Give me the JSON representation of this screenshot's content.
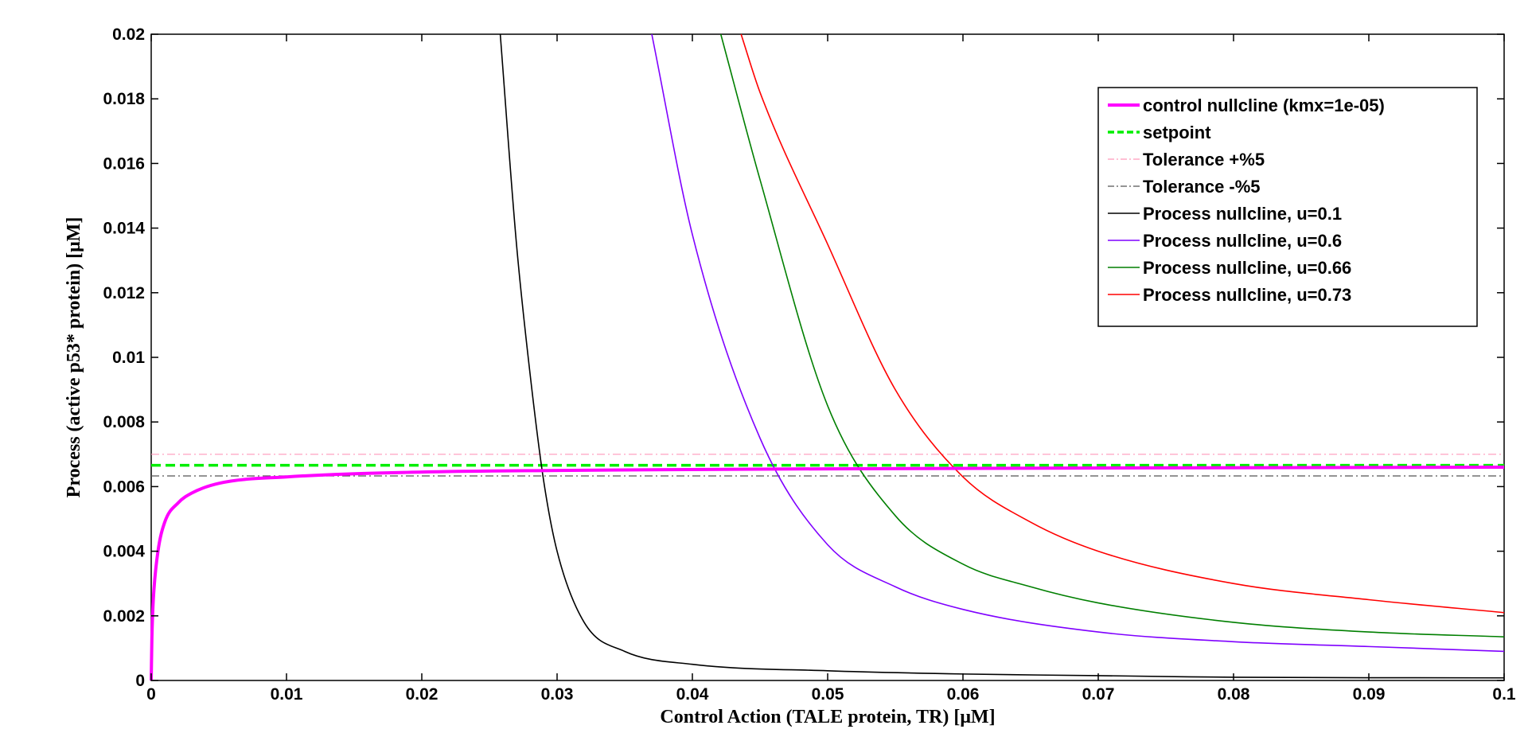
{
  "chart_data": {
    "type": "line",
    "title": "",
    "xlabel": "Control Action (TALE protein, TR) [μM]",
    "ylabel": "Process (active p53* protein) [μM]",
    "xlim": [
      0,
      0.1
    ],
    "ylim": [
      0,
      0.02
    ],
    "x_ticks": [
      "0",
      "0.01",
      "0.02",
      "0.03",
      "0.04",
      "0.05",
      "0.06",
      "0.07",
      "0.08",
      "0.09",
      "0.1"
    ],
    "y_ticks": [
      "0",
      "0.002",
      "0.004",
      "0.006",
      "0.008",
      "0.01",
      "0.012",
      "0.014",
      "0.016",
      "0.018",
      "0.02"
    ],
    "grid": false,
    "legend_position": "top-right",
    "series": [
      {
        "name": "control nullcline (kmx=1e-05)",
        "color": "#ff00ff",
        "style": "solid",
        "x": [
          0,
          5e-05,
          0.0001,
          0.0002,
          0.0005,
          0.001,
          0.002,
          0.003,
          0.005,
          0.01,
          0.02,
          0.03,
          0.05,
          0.1
        ],
        "y": [
          0,
          0.0013,
          0.002,
          0.0028,
          0.004,
          0.0049,
          0.0055,
          0.0058,
          0.0061,
          0.0063,
          0.00645,
          0.0065,
          0.00655,
          0.0066
        ]
      },
      {
        "name": "setpoint",
        "color": "#00ee00",
        "style": "dashed",
        "x": [
          0,
          0.1
        ],
        "y": [
          0.00666,
          0.00666
        ]
      },
      {
        "name": "Tolerance  +%5",
        "color": "#ff99bb",
        "style": "dashdot",
        "x": [
          0,
          0.1
        ],
        "y": [
          0.007,
          0.007
        ]
      },
      {
        "name": "Tolerance   -%5",
        "color": "#555555",
        "style": "dashdot",
        "x": [
          0,
          0.1
        ],
        "y": [
          0.00633,
          0.00633
        ]
      },
      {
        "name": "Process nullcline, u=0.1",
        "color": "#000000",
        "style": "solid",
        "x": [
          0.0258,
          0.027,
          0.028,
          0.029,
          0.03,
          0.032,
          0.035,
          0.04,
          0.05,
          0.06,
          0.07,
          0.08,
          0.1
        ],
        "y": [
          0.02,
          0.0135,
          0.0095,
          0.0062,
          0.004,
          0.0018,
          0.0009,
          0.0005,
          0.0003,
          0.0002,
          0.00015,
          0.0001,
          8e-05
        ]
      },
      {
        "name": "Process nullcline, u=0.6",
        "color": "#7f00ff",
        "style": "solid",
        "x": [
          0.037,
          0.04,
          0.045,
          0.05,
          0.055,
          0.06,
          0.07,
          0.08,
          0.09,
          0.1
        ],
        "y": [
          0.02,
          0.0138,
          0.0075,
          0.0042,
          0.0029,
          0.0022,
          0.0015,
          0.0012,
          0.00105,
          0.0009
        ]
      },
      {
        "name": "Process nullcline, u=0.66",
        "color": "#007f00",
        "style": "solid",
        "x": [
          0.0421,
          0.045,
          0.05,
          0.055,
          0.06,
          0.065,
          0.07,
          0.08,
          0.09,
          0.1
        ],
        "y": [
          0.02,
          0.0155,
          0.0085,
          0.0051,
          0.0036,
          0.0029,
          0.0024,
          0.0018,
          0.0015,
          0.00135
        ]
      },
      {
        "name": "Process nullcline, u=0.73",
        "color": "#ff0000",
        "style": "solid",
        "x": [
          0.0436,
          0.045,
          0.05,
          0.055,
          0.06,
          0.065,
          0.07,
          0.08,
          0.09,
          0.1
        ],
        "y": [
          0.02,
          0.0182,
          0.0135,
          0.009,
          0.0063,
          0.0049,
          0.004,
          0.003,
          0.0025,
          0.0021
        ]
      }
    ]
  }
}
